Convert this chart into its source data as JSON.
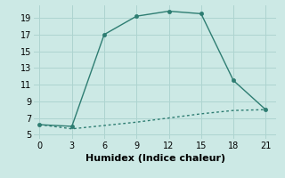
{
  "title": "",
  "xlabel": "Humidex (Indice chaleur)",
  "background_color": "#cce9e5",
  "grid_color": "#aed4d0",
  "line_color": "#2e7d72",
  "line1_x": [
    0,
    3,
    6,
    9,
    12,
    15,
    18,
    21
  ],
  "line1_y": [
    6.2,
    6.0,
    17.0,
    19.2,
    19.8,
    19.5,
    11.5,
    8.0
  ],
  "line2_x": [
    0,
    3,
    6,
    9,
    12,
    15,
    18,
    21
  ],
  "line2_y": [
    6.2,
    5.7,
    6.1,
    6.5,
    7.0,
    7.5,
    7.9,
    8.0
  ],
  "xlim": [
    -0.5,
    22
  ],
  "ylim": [
    4.5,
    20.5
  ],
  "xticks": [
    0,
    3,
    6,
    9,
    12,
    15,
    18,
    21
  ],
  "yticks": [
    5,
    7,
    9,
    11,
    13,
    15,
    17,
    19
  ],
  "marker_size": 3,
  "line_width": 1.0,
  "xlabel_fontsize": 8,
  "tick_fontsize": 7
}
